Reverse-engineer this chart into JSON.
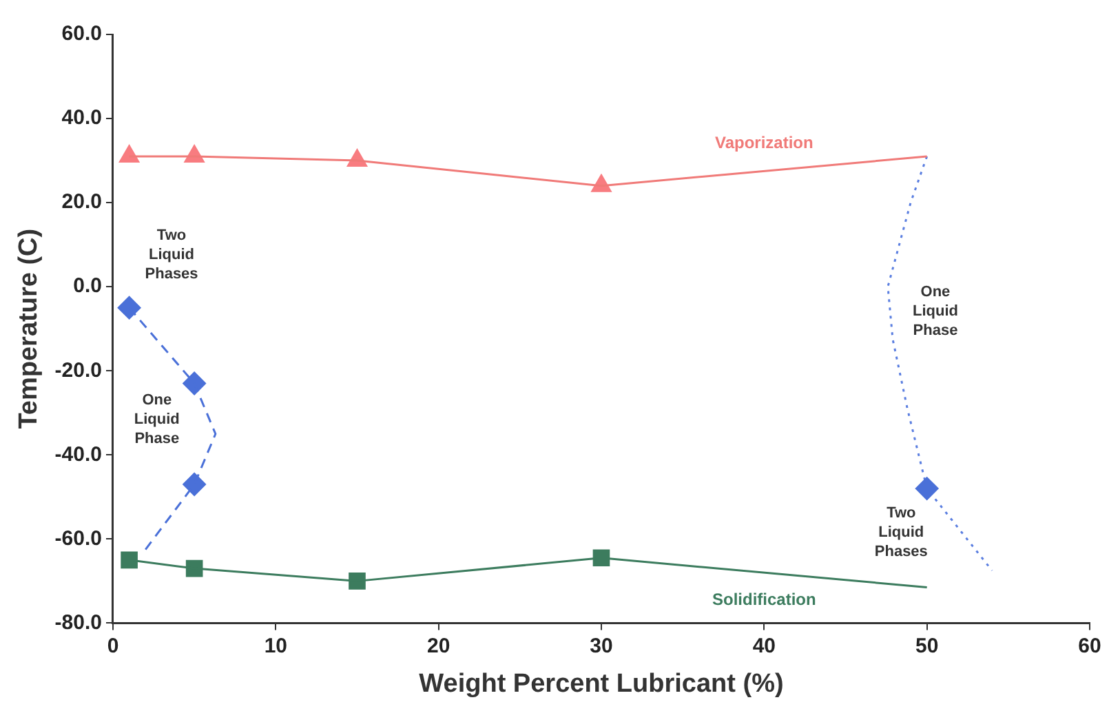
{
  "chart_data": {
    "type": "line",
    "xlabel": "Weight Percent Lubricant (%)",
    "ylabel": "Temperature (C)",
    "xlim": [
      0,
      60
    ],
    "xticks": [
      0,
      10,
      20,
      30,
      40,
      50,
      60
    ],
    "ylim": [
      -80,
      60
    ],
    "yticks": [
      {
        "value": -80,
        "label": "-80.0"
      },
      {
        "value": -60,
        "label": "-60.0"
      },
      {
        "value": -40,
        "label": "-40.0"
      },
      {
        "value": -20,
        "label": "-20.0"
      },
      {
        "value": 0,
        "label": "0.0"
      },
      {
        "value": 20,
        "label": "20.0"
      },
      {
        "value": 40,
        "label": "40.0"
      },
      {
        "value": 60,
        "label": "60.0"
      }
    ],
    "legend": false,
    "series": [
      {
        "name": "Vaporization",
        "color": "#f07a78",
        "line_style": "solid",
        "marker": "none",
        "x": [
          1,
          5,
          15,
          30,
          50
        ],
        "values": [
          31,
          31,
          30,
          24,
          31
        ]
      },
      {
        "type": "scatter",
        "color": "#f87c80",
        "marker": "triangle",
        "x": [
          1,
          5,
          15,
          30
        ],
        "values": [
          31,
          31,
          30,
          24
        ]
      },
      {
        "name": "Solidification",
        "color": "#3c7c5e",
        "line_style": "solid",
        "marker": "none",
        "x": [
          1,
          5,
          15,
          30,
          50
        ],
        "values": [
          -65,
          -67,
          -70,
          -64.5,
          -71.5
        ]
      },
      {
        "type": "scatter",
        "color": "#3c7c5e",
        "marker": "square",
        "x": [
          1,
          5,
          15,
          30
        ],
        "values": [
          -65,
          -67,
          -70,
          -64.5
        ]
      },
      {
        "type": "line",
        "color": "#4a70d8",
        "line_style": "dashed",
        "marker": "none",
        "x": [
          1,
          5,
          6.3,
          5,
          2
        ],
        "values": [
          -5,
          -23,
          -35,
          -47,
          -62.5
        ]
      },
      {
        "type": "scatter",
        "color": "#4a70d8",
        "marker": "diamond",
        "x": [
          1,
          5,
          5,
          50
        ],
        "values": [
          -5,
          -23,
          -47,
          -48
        ]
      },
      {
        "type": "line",
        "color": "#5a7ee0",
        "line_style": "dotted",
        "marker": "none",
        "x": [
          50,
          49,
          47.6,
          47.9,
          48.8,
          50,
          54
        ],
        "values": [
          31,
          20,
          0,
          -12.5,
          -29,
          -48,
          -67.5
        ]
      }
    ],
    "annotations": [
      "Two\nLiquid\nPhases",
      "One\nLiquid\nPhase",
      "One\nLiquid\nPhase",
      "Two\nLiquid\nPhases"
    ]
  }
}
